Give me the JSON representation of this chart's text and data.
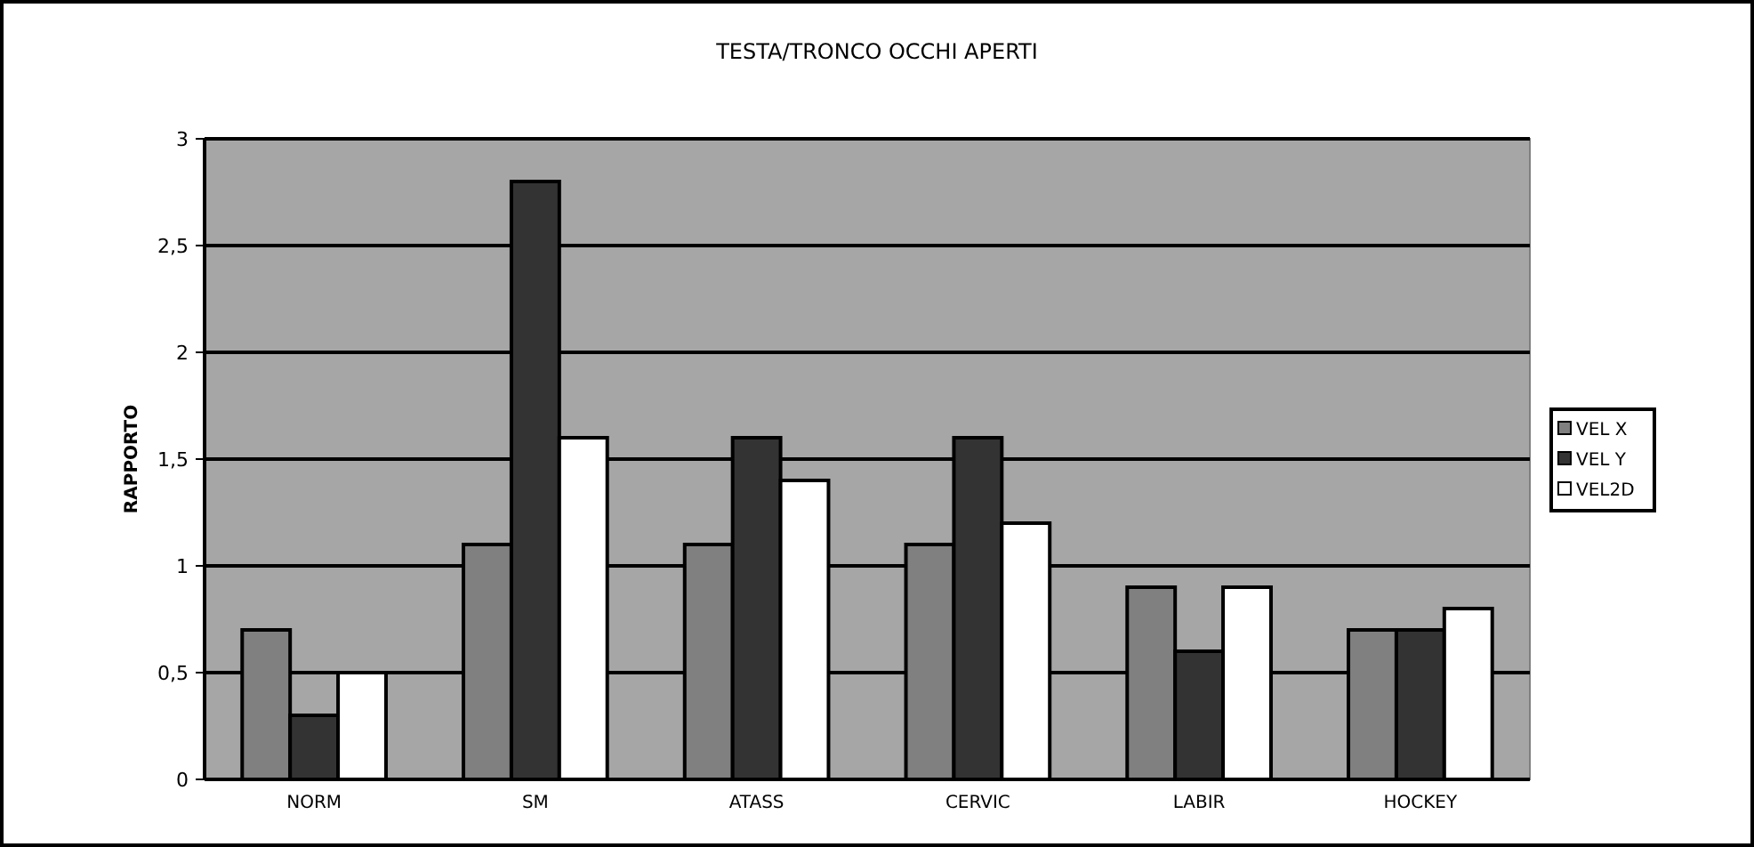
{
  "chart_data": {
    "type": "bar",
    "title": "TESTA/TRONCO OCCHI APERTI",
    "ylabel": "RAPPORTO",
    "categories": [
      "NORM",
      "SM",
      "ATASS",
      "CERVIC",
      "LABIR",
      "HOCKEY"
    ],
    "series": [
      {
        "name": "VEL X",
        "color": "#808080",
        "values": [
          0.7,
          1.1,
          1.1,
          1.1,
          0.9,
          0.7
        ]
      },
      {
        "name": "VEL Y",
        "color": "#333333",
        "values": [
          0.3,
          2.8,
          1.6,
          1.6,
          0.6,
          0.7
        ]
      },
      {
        "name": "VEL2D",
        "color": "#ffffff",
        "values": [
          0.5,
          1.6,
          1.4,
          1.2,
          0.9,
          0.8
        ]
      }
    ],
    "ylim": [
      0,
      3
    ],
    "yticks": [
      0,
      {
        "value": 0.5,
        "label": "0,5"
      },
      1,
      {
        "value": 1.5,
        "label": "1,5"
      },
      2,
      {
        "value": 2.5,
        "label": "2,5"
      },
      3
    ],
    "grid": "y",
    "legend": "right"
  }
}
